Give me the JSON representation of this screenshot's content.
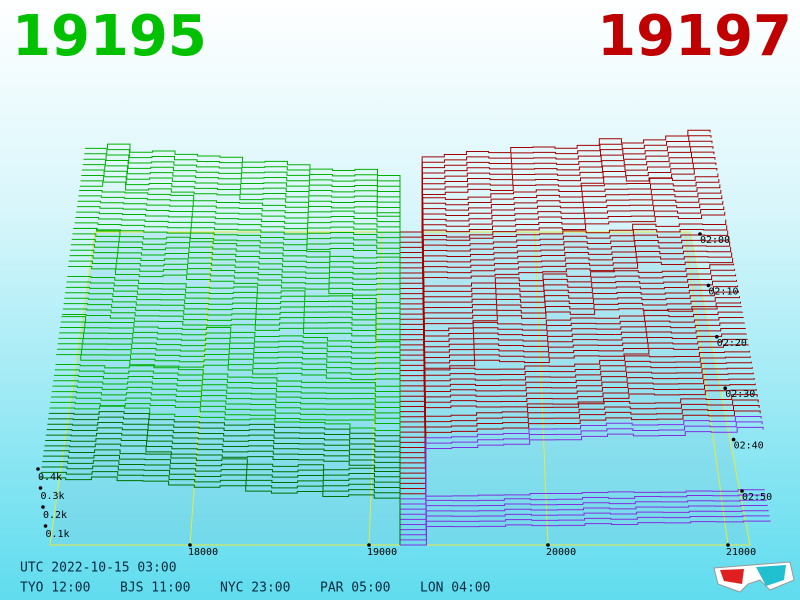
{
  "bid_price": "19195",
  "ask_price": "19197",
  "depth_ticks": [
    "0.4k",
    "0.3k",
    "0.2k",
    "0.1k"
  ],
  "price_ticks": [
    "18000",
    "19000",
    "20000",
    "21000"
  ],
  "time_ticks": [
    "02:00",
    "02:10",
    "02:20",
    "02:30",
    "02:40",
    "02:50"
  ],
  "utc": "UTC 2022-10-15 03:00",
  "clocks": [
    "TYO 12:00",
    "BJS 11:00",
    "NYC 23:00",
    "PAR 05:00",
    "LON 04:00"
  ]
}
